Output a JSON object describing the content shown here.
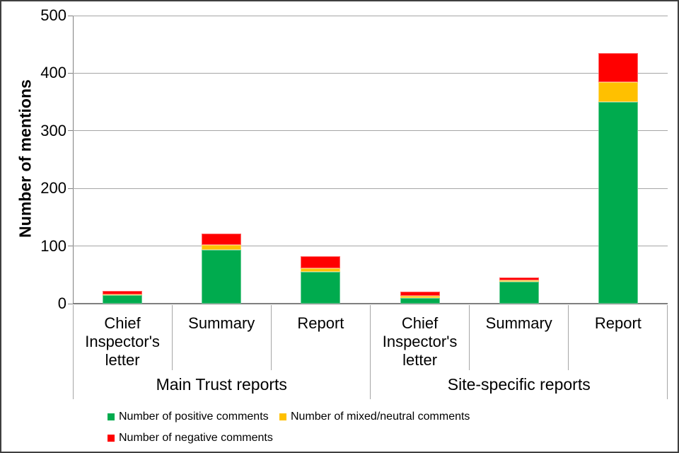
{
  "chart_data": {
    "type": "bar",
    "stacked": true,
    "ylabel": "Number of mentions",
    "ylim": [
      0,
      500
    ],
    "yticks": [
      0,
      100,
      200,
      300,
      400,
      500
    ],
    "grid": true,
    "legend_position": "bottom",
    "groups": [
      "Main Trust reports",
      "Site-specific reports"
    ],
    "categories": [
      "Chief Inspector's letter",
      "Summary",
      "Report",
      "Chief Inspector's letter",
      "Summary",
      "Report"
    ],
    "series": [
      {
        "key": "positive",
        "name": "Number of positive comments",
        "color": "#00AB4E",
        "values": [
          15,
          93,
          55,
          10,
          38,
          350
        ]
      },
      {
        "key": "mixed_neutral",
        "name": "Number of mixed/neutral comments",
        "color": "#FFC000",
        "values": [
          1,
          9,
          7,
          4,
          2,
          35
        ]
      },
      {
        "key": "negative",
        "name": "Number of negative comments",
        "color": "#FF0000",
        "values": [
          6,
          20,
          20,
          7,
          5,
          50
        ]
      }
    ],
    "bar_totals": [
      22,
      122,
      82,
      21,
      45,
      435
    ]
  },
  "colors": {
    "gridline": "#A6A6A6",
    "axis_line": "#808080",
    "separator": "#A6A6A6",
    "frame_border": "#3F3F3F",
    "background": "#FFFFFF",
    "text": "#000000"
  }
}
